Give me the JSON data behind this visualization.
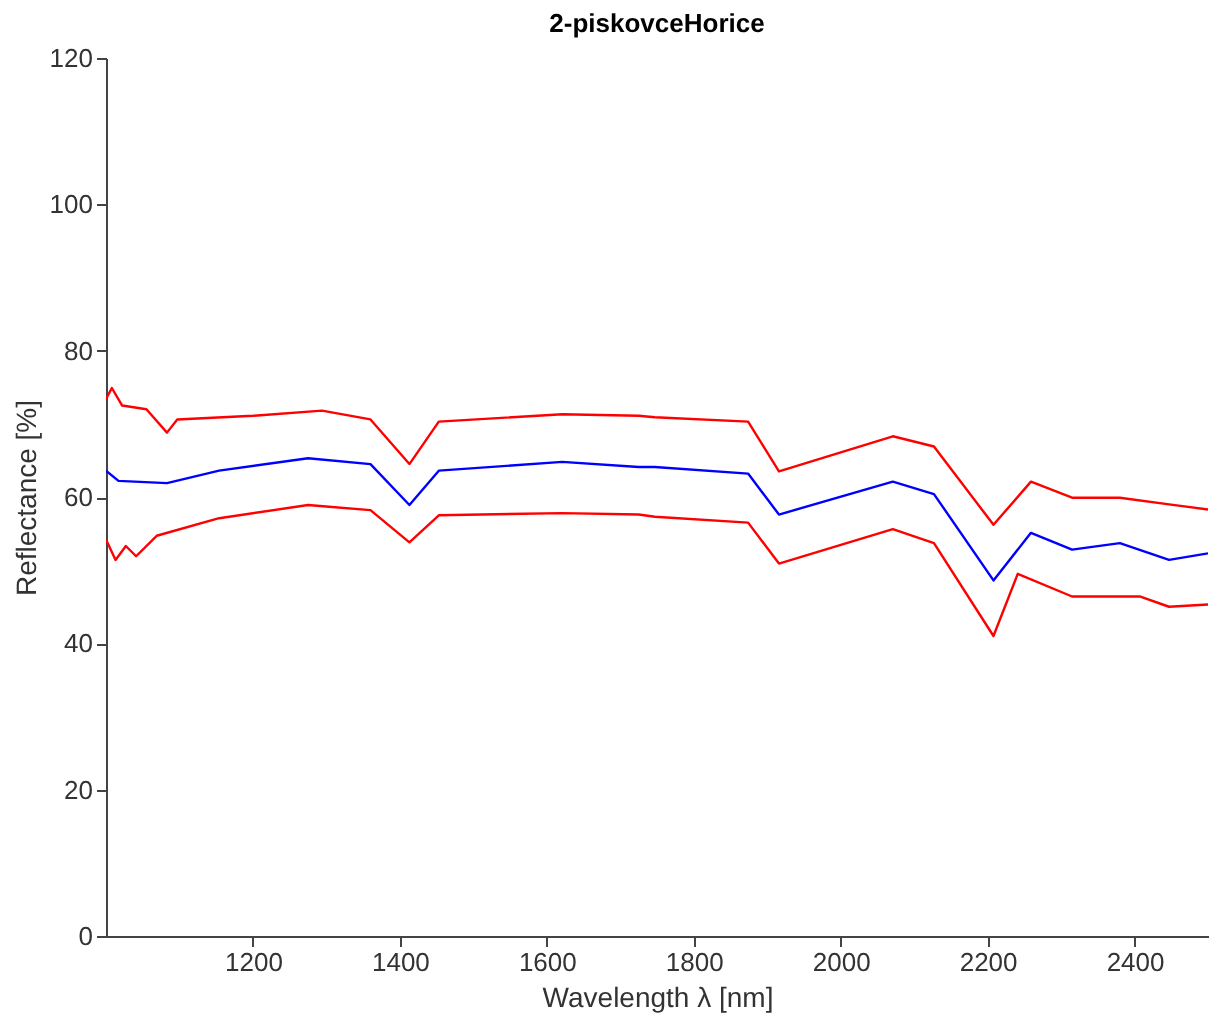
{
  "chart_data": {
    "type": "line",
    "title": "2-piskovceHorice",
    "xlabel": "Wavelength λ [nm]",
    "ylabel": "Reflectance [%]",
    "xlim": [
      1000,
      2500
    ],
    "ylim": [
      0,
      120
    ],
    "xticks": [
      1200,
      1400,
      1600,
      1800,
      2000,
      2200,
      2400
    ],
    "yticks": [
      0,
      20,
      40,
      60,
      80,
      100,
      120
    ],
    "grid": false,
    "legend": false,
    "line_style": "solid",
    "marker": "none",
    "series": [
      {
        "color": "#ff0000",
        "x": [
          1000,
          1008,
          1022,
          1055,
          1083,
          1097,
          1200,
          1294,
          1360,
          1413,
          1453,
          1621,
          1725,
          1747,
          1874,
          1916,
          2071,
          2127,
          2208,
          2259,
          2315,
          2380,
          2447,
          2500
        ],
        "values": [
          73.4,
          74.9,
          72.5,
          72,
          68.8,
          70.6,
          71.1,
          71.8,
          70.6,
          64.5,
          70.3,
          71.3,
          71.1,
          70.9,
          70.3,
          63.5,
          68.3,
          66.9,
          56.2,
          62.1,
          59.9,
          59.9,
          59,
          58.3
        ]
      },
      {
        "color": "#0000ff",
        "x": [
          1000,
          1017,
          1083,
          1154,
          1275,
          1360,
          1413,
          1453,
          1621,
          1725,
          1747,
          1874,
          1916,
          2071,
          2127,
          2208,
          2259,
          2315,
          2380,
          2447,
          2500
        ],
        "values": [
          63.6,
          62.2,
          61.9,
          63.6,
          65.3,
          64.5,
          58.9,
          63.6,
          64.8,
          64.1,
          64.1,
          63.2,
          57.6,
          62.1,
          60.4,
          48.6,
          55.1,
          52.8,
          53.7,
          51.4,
          52.3
        ]
      },
      {
        "color": "#ff0000",
        "x": [
          1000,
          1013,
          1027,
          1041,
          1069,
          1154,
          1275,
          1360,
          1413,
          1453,
          1621,
          1725,
          1747,
          1874,
          1916,
          2071,
          2127,
          2208,
          2241,
          2315,
          2408,
          2447,
          2500
        ],
        "values": [
          54.2,
          51.4,
          53.3,
          51.9,
          54.7,
          57.1,
          58.9,
          58.2,
          53.8,
          57.5,
          57.8,
          57.6,
          57.3,
          56.5,
          50.9,
          55.6,
          53.7,
          41,
          49.5,
          46.4,
          46.4,
          45,
          45.3
        ]
      }
    ]
  }
}
